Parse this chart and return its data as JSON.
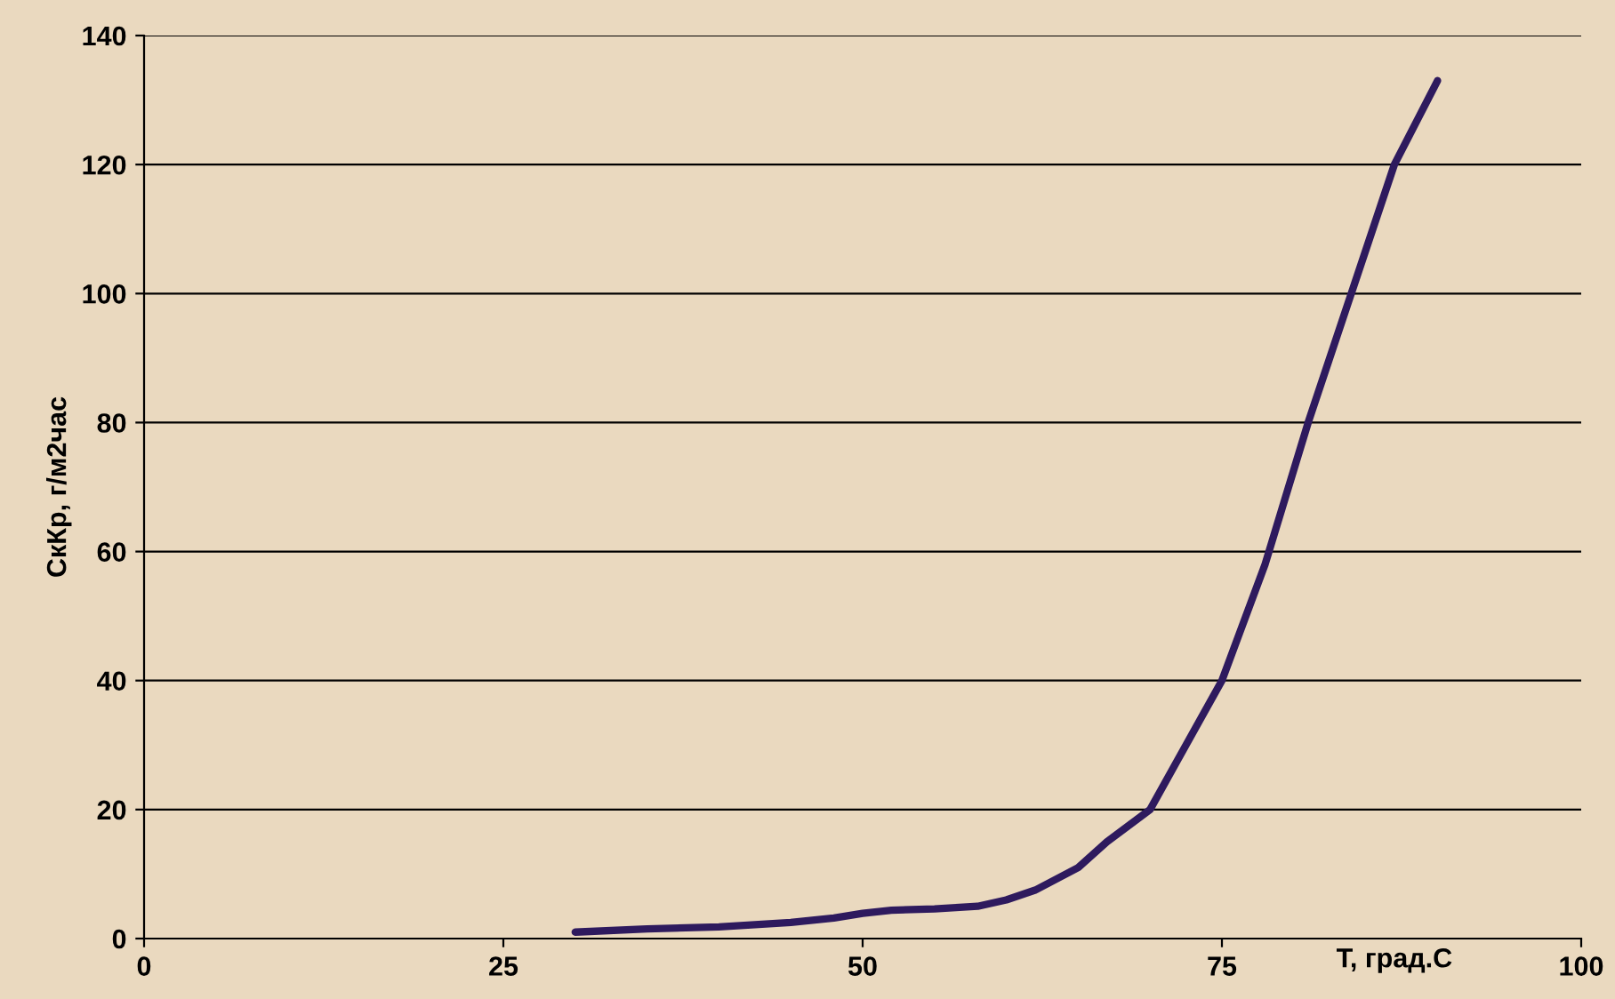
{
  "chart_data": {
    "type": "line",
    "xlabel": "T, град.С",
    "ylabel": "СкКр, г/м2час",
    "series": [
      {
        "color": "#2e1a5e",
        "x": [
          30,
          35,
          40,
          45,
          48,
          50,
          52,
          55,
          58,
          60,
          62,
          65,
          67,
          70,
          72,
          75,
          78,
          81,
          84,
          87,
          90
        ],
        "values": [
          1,
          1.5,
          1.8,
          2.5,
          3.2,
          3.9,
          4.4,
          4.6,
          5,
          6,
          7.5,
          11,
          15,
          20,
          28,
          40,
          58,
          80,
          100,
          120,
          133
        ]
      }
    ],
    "xlim": [
      0,
      100
    ],
    "xticks": [
      0,
      25,
      50,
      75,
      100
    ],
    "ylim": [
      0,
      140
    ],
    "yticks": [
      0,
      20,
      40,
      60,
      80,
      100,
      120,
      140
    ],
    "grid": "y",
    "legend": false,
    "marker": "none",
    "line_style": "solid"
  }
}
